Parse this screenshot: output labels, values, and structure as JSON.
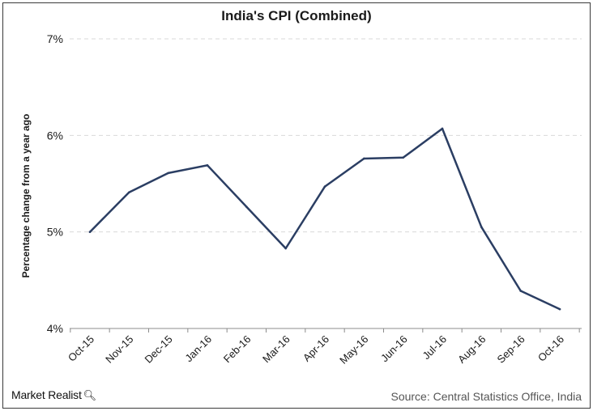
{
  "chart_data": {
    "type": "line",
    "title": "India's CPI (Combined)",
    "xlabel": "",
    "ylabel": "Percentage change from a year ago",
    "categories": [
      "Oct-15",
      "Nov-15",
      "Dec-15",
      "Jan-16",
      "Feb-16",
      "Mar-16",
      "Apr-16",
      "May-16",
      "Jun-16",
      "Jul-16",
      "Aug-16",
      "Sep-16",
      "Oct-16"
    ],
    "series": [
      {
        "values": [
          5.0,
          5.41,
          5.61,
          5.69,
          5.26,
          4.83,
          5.47,
          5.76,
          5.77,
          6.07,
          5.05,
          4.39,
          4.2
        ],
        "color": "#2b3e63"
      }
    ],
    "ylim": [
      4,
      7
    ],
    "yticks": [
      4,
      5,
      6,
      7
    ],
    "ytick_labels": [
      "4%",
      "5%",
      "6%",
      "7%"
    ],
    "grid": true,
    "legend": "none"
  },
  "footer": {
    "brand": "Market Realist",
    "brand_icon": "magnifier-icon",
    "source": "Source: Central Statistics Office, India"
  }
}
